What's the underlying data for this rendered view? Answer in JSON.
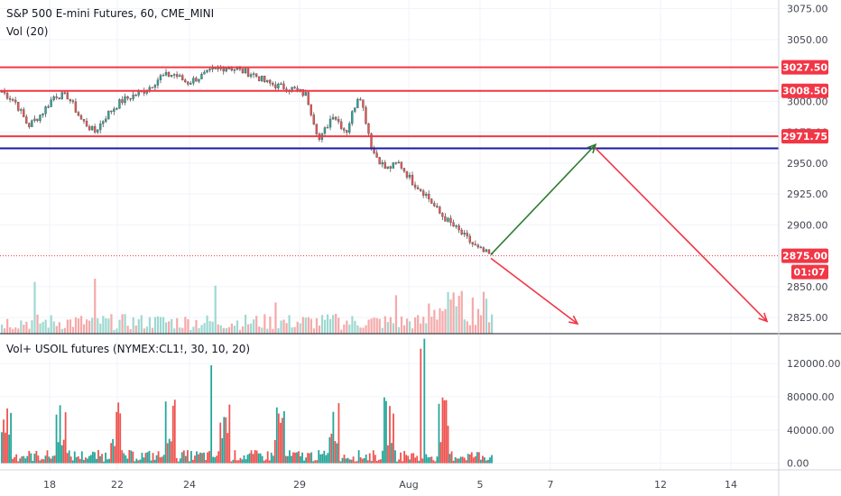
{
  "chart_data": [
    {
      "type": "candlestick",
      "title": "S&P 500 E-mini Futures, 60, CME_MINI",
      "subtitle": "Vol (20)",
      "ylim": [
        2812,
        3082
      ],
      "y_ticks": [
        3075,
        3050,
        3025,
        3000,
        2975,
        2950,
        2925,
        2900,
        2850,
        2825
      ],
      "y_tick_labels": [
        "3075.00",
        "3050.00",
        "3025.00",
        "3000.00",
        "2975.00",
        "2950.00",
        "2925.00",
        "2900.00",
        "2850.00",
        "2825.00"
      ],
      "x_ticks": [
        "18",
        "22",
        "24",
        "29",
        "Aug",
        "5",
        "7",
        "12",
        "14"
      ],
      "horizontal_levels": [
        {
          "value": 3027.5,
          "label": "3027.50",
          "color": "#f23645"
        },
        {
          "value": 3008.5,
          "label": "3008.50",
          "color": "#f23645"
        },
        {
          "value": 2971.75,
          "label": "2971.75",
          "color": "#f23645"
        },
        {
          "value": 2962,
          "label": "",
          "color": "#1a1aa6"
        }
      ],
      "last_price": {
        "value": 2875.0,
        "label": "2875.00",
        "countdown": "01:07",
        "color": "#f23645"
      },
      "key_closes": [
        3008,
        3000,
        2980,
        2990,
        3005,
        3004,
        2985,
        2975,
        2990,
        3000,
        3005,
        3010,
        3020,
        3022,
        3015,
        3020,
        3025,
        3028,
        3025,
        3022,
        3015,
        3012,
        3010,
        3005,
        2968,
        2990,
        2975,
        3008,
        2960,
        2945,
        2950,
        2935,
        2925,
        2910,
        2900,
        2890,
        2880,
        2875
      ]
    },
    {
      "type": "bar",
      "title": "Vol+ USOIL futures (NYMEX:CL1!, 30, 10, 20)",
      "ylim": [
        -8000,
        155000
      ],
      "y_ticks": [
        120000,
        80000,
        40000,
        0
      ],
      "y_tick_labels": [
        "120000.00",
        "80000.00",
        "40000.00",
        "0.00"
      ],
      "colors": {
        "up": "#26a69a",
        "down": "#ef5350"
      }
    }
  ],
  "annotations": [
    {
      "type": "arrow",
      "color": "#2e7d32",
      "from_date": "Aug 5",
      "from_value": 2876,
      "to_date": "Aug 9",
      "to_value": 2965
    },
    {
      "type": "arrow",
      "color": "#f23645",
      "from_date": "Aug 9",
      "from_value": 2962,
      "to_date": "Aug 16",
      "to_value": 2822
    },
    {
      "type": "arrow",
      "color": "#f23645",
      "from_date": "Aug 5",
      "from_value": 2873,
      "to_date": "Aug 7",
      "to_value": 2820
    }
  ]
}
